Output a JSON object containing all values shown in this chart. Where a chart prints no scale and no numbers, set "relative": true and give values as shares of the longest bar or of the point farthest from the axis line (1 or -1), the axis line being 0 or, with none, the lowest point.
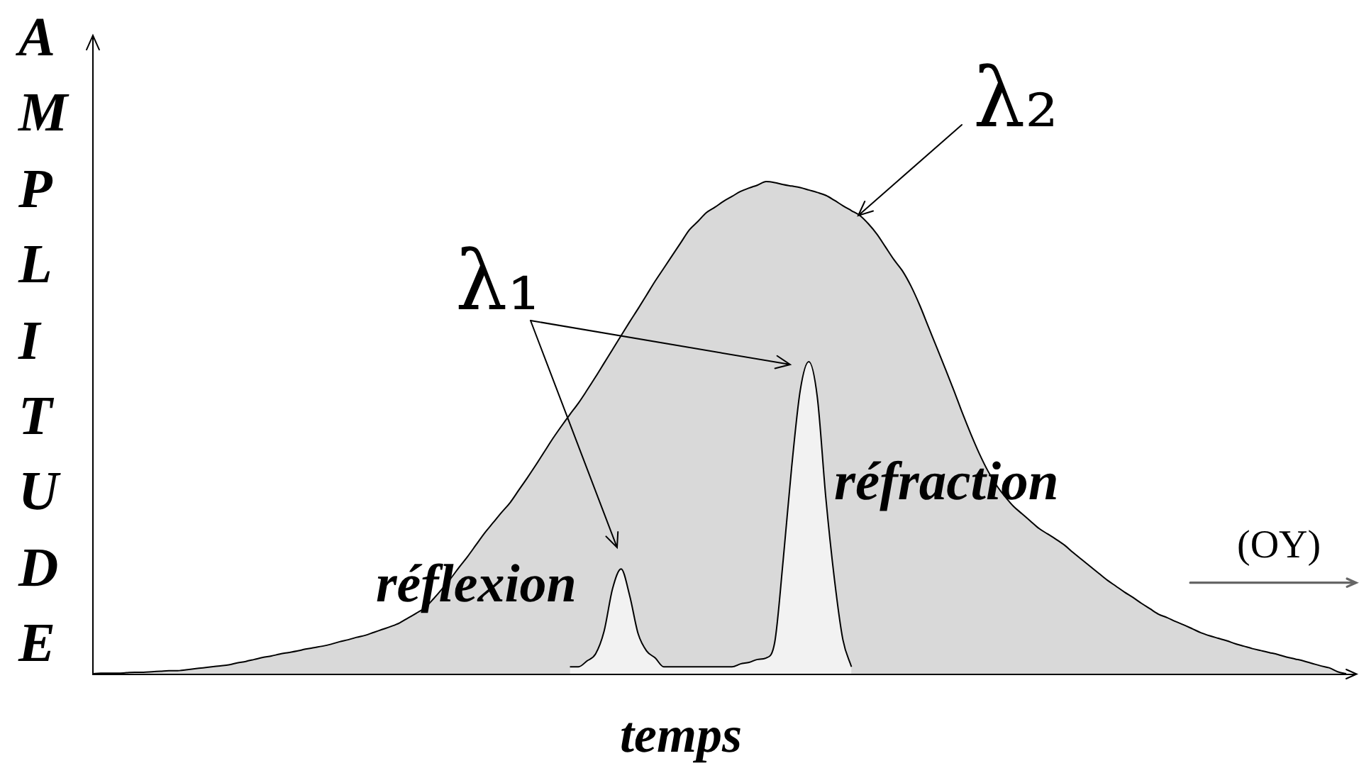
{
  "chart_data": {
    "type": "area",
    "ylabel": "AMPLITUDE",
    "xlabel": "temps",
    "relative": true,
    "legend": false,
    "grid": false,
    "categories": [
      null,
      null,
      null,
      null,
      null,
      null,
      null,
      null,
      null,
      null,
      null,
      null,
      null,
      null,
      null,
      null,
      null,
      null,
      null,
      null,
      null,
      null,
      null,
      null,
      null,
      null,
      null,
      null,
      null,
      null,
      null,
      null,
      null,
      null,
      null,
      null,
      null,
      null,
      null,
      null,
      null,
      null,
      null,
      null,
      null,
      null,
      null,
      null,
      null,
      null,
      null,
      null,
      null,
      null,
      null,
      null,
      null,
      null,
      null,
      null,
      null,
      null,
      null,
      null,
      null,
      null,
      null,
      null,
      null,
      null,
      null,
      null,
      null,
      null,
      null,
      null,
      null,
      null,
      null,
      null,
      null,
      null,
      null,
      null,
      null,
      null,
      null,
      null,
      null,
      null,
      null,
      null,
      null,
      null,
      null,
      null,
      null,
      null,
      null,
      null,
      null,
      null,
      null,
      null,
      null,
      null,
      null,
      null,
      null,
      null,
      null,
      null,
      null,
      null,
      null,
      null,
      null,
      null,
      null,
      null,
      null,
      null,
      null,
      null,
      null,
      null,
      null,
      null,
      null,
      null,
      null,
      null,
      null,
      null,
      null,
      null,
      null,
      null,
      null,
      null,
      null,
      null,
      null,
      null,
      null,
      null,
      null,
      null,
      null
    ],
    "series": [
      {
        "name": "λ₂",
        "color": "#d9d9d9",
        "values": [
          0,
          0.001,
          0.001,
          0.001,
          0.002,
          0.003,
          0.003,
          0.004,
          0.005,
          0.006,
          0.006,
          0.008,
          0.01,
          0.012,
          0.014,
          0.016,
          0.018,
          0.022,
          0.025,
          0.029,
          0.033,
          0.036,
          0.04,
          0.043,
          0.046,
          0.05,
          0.053,
          0.056,
          0.06,
          0.065,
          0.069,
          0.074,
          0.078,
          0.084,
          0.09,
          0.096,
          0.103,
          0.113,
          0.123,
          0.134,
          0.152,
          0.172,
          0.193,
          0.216,
          0.238,
          0.262,
          0.286,
          0.307,
          0.328,
          0.348,
          0.373,
          0.398,
          0.424,
          0.451,
          0.478,
          0.503,
          0.527,
          0.55,
          0.576,
          0.603,
          0.631,
          0.659,
          0.687,
          0.715,
          0.742,
          0.77,
          0.798,
          0.824,
          0.85,
          0.876,
          0.902,
          0.919,
          0.937,
          0.948,
          0.96,
          0.97,
          0.98,
          0.987,
          0.993,
          1,
          0.998,
          0.994,
          0.991,
          0.988,
          0.983,
          0.978,
          0.972,
          0.962,
          0.951,
          0.941,
          0.931,
          0.914,
          0.893,
          0.867,
          0.841,
          0.818,
          0.787,
          0.749,
          0.706,
          0.663,
          0.62,
          0.576,
          0.53,
          0.487,
          0.447,
          0.412,
          0.383,
          0.36,
          0.34,
          0.325,
          0.31,
          0.295,
          0.284,
          0.273,
          0.261,
          0.246,
          0.232,
          0.218,
          0.204,
          0.19,
          0.178,
          0.166,
          0.155,
          0.143,
          0.132,
          0.121,
          0.114,
          0.106,
          0.099,
          0.091,
          0.083,
          0.077,
          0.072,
          0.067,
          0.061,
          0.056,
          0.051,
          0.047,
          0.043,
          0.039,
          0.034,
          0.03,
          0.026,
          0.021,
          0.016,
          0.012,
          0.004,
          0,
          null
        ]
      },
      {
        "name": "λ₁",
        "color": "#f2f2f2",
        "values": [
          null,
          null,
          null,
          null,
          null,
          null,
          null,
          null,
          null,
          null,
          null,
          null,
          null,
          null,
          null,
          null,
          null,
          null,
          null,
          null,
          null,
          null,
          null,
          null,
          null,
          null,
          null,
          null,
          null,
          null,
          null,
          null,
          null,
          null,
          null,
          null,
          null,
          null,
          null,
          null,
          null,
          null,
          null,
          null,
          null,
          null,
          null,
          null,
          null,
          null,
          null,
          null,
          null,
          null,
          null,
          null,
          0.014,
          0.014,
          0.026,
          0.04,
          0.086,
          0.173,
          0.213,
          0.159,
          0.081,
          0.046,
          0.032,
          0.014,
          0.014,
          0.014,
          0.014,
          0.014,
          0.014,
          0.014,
          0.014,
          0.014,
          0.02,
          0.023,
          0.029,
          0.032,
          0.063,
          0.231,
          0.421,
          0.576,
          0.634,
          0.562,
          0.357,
          0.193,
          0.069,
          0.014,
          null,
          null,
          null,
          null,
          null,
          null,
          null,
          null,
          null,
          null,
          null,
          null,
          null,
          null,
          null,
          null,
          null,
          null,
          null,
          null,
          null,
          null,
          null,
          null,
          null,
          null,
          null,
          null,
          null,
          null,
          null,
          null,
          null,
          null,
          null,
          null,
          null,
          null,
          null,
          null,
          null,
          null,
          null,
          null,
          null,
          null,
          null,
          null,
          null,
          null,
          null,
          null,
          null,
          null,
          null,
          null,
          null,
          null,
          null
        ]
      }
    ],
    "annotations": [
      "réflexion",
      "réfraction",
      "(OY)"
    ]
  }
}
